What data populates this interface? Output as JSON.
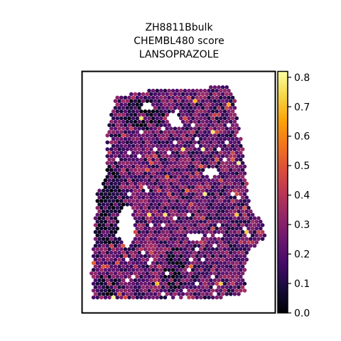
{
  "chart_data": {
    "type": "scatter",
    "subtype": "spatial-hexagonal-spot-map",
    "title": [
      "ZH8811Bbulk",
      "CHEMBL480 score",
      "LANSOPRAZOLE"
    ],
    "xlabel": "",
    "ylabel": "",
    "axes_ticks_visible": false,
    "grid": false,
    "colormap": "inferno",
    "color_range": [
      0.0,
      0.82
    ],
    "colorbar": {
      "placement": "right",
      "ticks": [
        0.0,
        0.1,
        0.2,
        0.3,
        0.4,
        0.5,
        0.6,
        0.7,
        0.8
      ],
      "tick_labels": [
        "0.0",
        "0.1",
        "0.2",
        "0.3",
        "0.4",
        "0.5",
        "0.6",
        "0.7",
        "0.8"
      ]
    },
    "score_summary": {
      "typical_range": [
        0.1,
        0.4
      ],
      "low_values_near_zero": "scattered along tissue edges and around internal holes",
      "max_observed": 0.82
    }
  }
}
